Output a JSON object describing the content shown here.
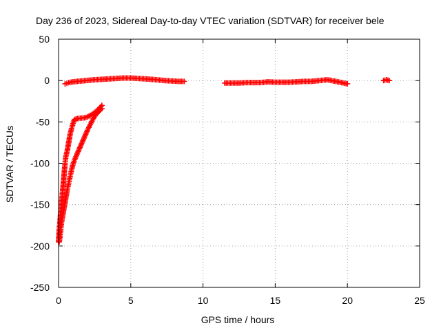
{
  "chart_data": {
    "type": "scatter",
    "title": "Day 236 of 2023, Sidereal Day-to-day VTEC variation (SDTVAR) for receiver bele",
    "xlabel": "GPS time / hours",
    "ylabel": "SDTVAR / TECUs",
    "xlim": [
      0,
      25
    ],
    "ylim": [
      -250,
      50
    ],
    "xticks": [
      "0",
      "5",
      "10",
      "15",
      "20",
      "25"
    ],
    "yticks": [
      "50",
      "0",
      "-50",
      "-100",
      "-150",
      "-200",
      "-250"
    ],
    "grid": true,
    "marker": "+",
    "color": "#ff0000",
    "series": [
      {
        "points": [
          [
            0.45,
            -4
          ],
          [
            0.7,
            -2.5
          ],
          [
            1.0,
            -1.5
          ],
          [
            1.3,
            -1
          ],
          [
            1.6,
            -0.5
          ],
          [
            2.5,
            1
          ],
          [
            3.0,
            1.5
          ],
          [
            3.5,
            2
          ],
          [
            4.0,
            2.5
          ],
          [
            4.5,
            3
          ],
          [
            5.0,
            3
          ],
          [
            5.5,
            2.5
          ],
          [
            6.0,
            2
          ],
          [
            6.8,
            1
          ],
          [
            7.3,
            0
          ],
          [
            7.8,
            -0.5
          ],
          [
            8.3,
            -1
          ],
          [
            8.7,
            -1
          ],
          [
            11.5,
            -3
          ],
          [
            12.0,
            -3
          ],
          [
            12.5,
            -3
          ],
          [
            13.0,
            -2.5
          ],
          [
            13.5,
            -2.5
          ],
          [
            14.0,
            -2.5
          ],
          [
            14.5,
            -1.5
          ],
          [
            15.0,
            -2
          ],
          [
            15.5,
            -2
          ],
          [
            16.0,
            -2
          ],
          [
            16.5,
            -1.5
          ],
          [
            17.0,
            -1
          ],
          [
            17.5,
            -1
          ],
          [
            17.8,
            -0.5
          ],
          [
            18.6,
            1
          ],
          [
            19.2,
            -1
          ],
          [
            20.0,
            -4
          ],
          [
            22.5,
            0
          ],
          [
            22.7,
            1
          ],
          [
            22.9,
            0
          ],
          [
            0.0,
            -195
          ],
          [
            0.05,
            -180
          ],
          [
            0.1,
            -170
          ],
          [
            0.15,
            -160
          ],
          [
            0.2,
            -150
          ],
          [
            0.25,
            -140
          ],
          [
            0.3,
            -130
          ],
          [
            0.35,
            -120
          ],
          [
            0.4,
            -110
          ],
          [
            0.45,
            -100
          ],
          [
            0.5,
            -92
          ],
          [
            0.6,
            -85
          ],
          [
            0.7,
            -75
          ],
          [
            0.8,
            -65
          ],
          [
            0.9,
            -58
          ],
          [
            1.0,
            -52
          ],
          [
            1.1,
            -47
          ],
          [
            1.3,
            -46
          ],
          [
            1.5,
            -45.5
          ],
          [
            1.8,
            -45
          ],
          [
            2.0,
            -44
          ],
          [
            2.2,
            -42
          ],
          [
            2.4,
            -40
          ],
          [
            2.6,
            -37
          ],
          [
            2.8,
            -34
          ],
          [
            3.0,
            -30
          ],
          [
            0.05,
            -195
          ],
          [
            0.1,
            -188
          ],
          [
            0.15,
            -180
          ],
          [
            0.2,
            -172
          ],
          [
            0.3,
            -162
          ],
          [
            0.4,
            -152
          ],
          [
            0.5,
            -142
          ],
          [
            0.6,
            -132
          ],
          [
            0.7,
            -124
          ],
          [
            0.8,
            -116
          ],
          [
            0.9,
            -108
          ],
          [
            1.0,
            -101
          ],
          [
            1.2,
            -92
          ],
          [
            1.4,
            -84
          ],
          [
            1.6,
            -76
          ],
          [
            1.8,
            -68
          ],
          [
            2.0,
            -60
          ],
          [
            2.2,
            -53
          ],
          [
            2.4,
            -46
          ],
          [
            2.6,
            -41
          ],
          [
            2.8,
            -37
          ],
          [
            3.0,
            -34
          ]
        ]
      }
    ]
  }
}
